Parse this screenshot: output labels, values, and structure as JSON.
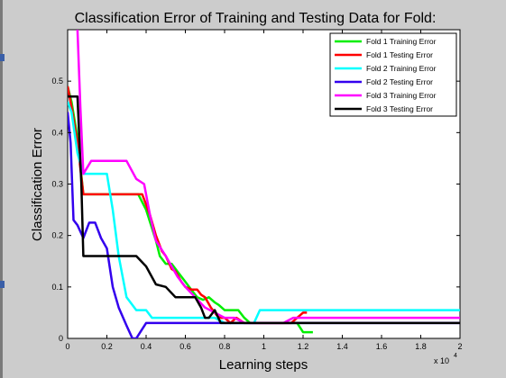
{
  "chart_data": {
    "type": "line",
    "title": "Classification Error of Training and Testing Data for Fold:",
    "xlabel": "Learning steps",
    "ylabel": "Classification Error",
    "x_multiplier": "x 10",
    "x_multiplier_exp": "4",
    "xlim": [
      0,
      2
    ],
    "ylim": [
      0,
      0.6
    ],
    "x_ticks": [
      "0",
      "0.2",
      "0.4",
      "0.6",
      "0.8",
      "1",
      "1.2",
      "1.4",
      "1.6",
      "1.8",
      "2"
    ],
    "x_tick_values": [
      0,
      0.2,
      0.4,
      0.6,
      0.8,
      1.0,
      1.2,
      1.4,
      1.6,
      1.8,
      2.0
    ],
    "y_ticks": [
      "0",
      "0.1",
      "0.2",
      "0.3",
      "0.4",
      "0.5"
    ],
    "y_tick_values": [
      0,
      0.1,
      0.2,
      0.3,
      0.4,
      0.5
    ],
    "grid": false,
    "legend_position": "top-right",
    "series": [
      {
        "name": "Fold 1 Training Error",
        "color": "#00ee00",
        "points": [
          [
            0,
            0.49
          ],
          [
            0.02,
            0.46
          ],
          [
            0.05,
            0.39
          ],
          [
            0.08,
            0.28
          ],
          [
            0.2,
            0.28
          ],
          [
            0.36,
            0.28
          ],
          [
            0.4,
            0.25
          ],
          [
            0.45,
            0.19
          ],
          [
            0.47,
            0.16
          ],
          [
            0.5,
            0.145
          ],
          [
            0.53,
            0.145
          ],
          [
            0.56,
            0.13
          ],
          [
            0.6,
            0.11
          ],
          [
            0.64,
            0.09
          ],
          [
            0.66,
            0.08
          ],
          [
            0.69,
            0.075
          ],
          [
            0.72,
            0.08
          ],
          [
            0.75,
            0.07
          ],
          [
            0.77,
            0.065
          ],
          [
            0.8,
            0.055
          ],
          [
            0.87,
            0.055
          ],
          [
            0.9,
            0.04
          ],
          [
            0.93,
            0.03
          ],
          [
            1.0,
            0.03
          ],
          [
            1.1,
            0.03
          ],
          [
            1.17,
            0.03
          ],
          [
            1.2,
            0.012
          ],
          [
            1.25,
            0.012
          ]
        ]
      },
      {
        "name": "Fold 1 Testing Error",
        "color": "#ff0000",
        "points": [
          [
            0,
            0.49
          ],
          [
            0.02,
            0.45
          ],
          [
            0.05,
            0.38
          ],
          [
            0.08,
            0.28
          ],
          [
            0.2,
            0.28
          ],
          [
            0.38,
            0.28
          ],
          [
            0.42,
            0.24
          ],
          [
            0.45,
            0.2
          ],
          [
            0.48,
            0.17
          ],
          [
            0.5,
            0.16
          ],
          [
            0.53,
            0.135
          ],
          [
            0.55,
            0.13
          ],
          [
            0.58,
            0.11
          ],
          [
            0.6,
            0.1
          ],
          [
            0.63,
            0.095
          ],
          [
            0.66,
            0.095
          ],
          [
            0.68,
            0.085
          ],
          [
            0.7,
            0.08
          ],
          [
            0.73,
            0.06
          ],
          [
            0.76,
            0.045
          ],
          [
            0.78,
            0.04
          ],
          [
            0.8,
            0.04
          ],
          [
            0.83,
            0.03
          ],
          [
            0.86,
            0.04
          ],
          [
            0.9,
            0.03
          ],
          [
            0.95,
            0.03
          ],
          [
            1.1,
            0.03
          ],
          [
            1.14,
            0.03
          ],
          [
            1.17,
            0.04
          ],
          [
            1.2,
            0.05
          ],
          [
            1.22,
            0.05
          ]
        ]
      },
      {
        "name": "Fold 2 Training Error",
        "color": "#00ffff",
        "points": [
          [
            0,
            0.46
          ],
          [
            0.02,
            0.44
          ],
          [
            0.05,
            0.36
          ],
          [
            0.08,
            0.32
          ],
          [
            0.2,
            0.32
          ],
          [
            0.23,
            0.25
          ],
          [
            0.26,
            0.16
          ],
          [
            0.3,
            0.08
          ],
          [
            0.35,
            0.055
          ],
          [
            0.4,
            0.055
          ],
          [
            0.43,
            0.04
          ],
          [
            0.6,
            0.04
          ],
          [
            0.75,
            0.04
          ],
          [
            0.8,
            0.03
          ],
          [
            0.95,
            0.03
          ],
          [
            0.98,
            0.055
          ],
          [
            1.2,
            0.055
          ],
          [
            2.0,
            0.055
          ]
        ]
      },
      {
        "name": "Fold 2 Testing Error",
        "color": "#3300ee",
        "points": [
          [
            0,
            0.44
          ],
          [
            0.015,
            0.38
          ],
          [
            0.03,
            0.23
          ],
          [
            0.05,
            0.22
          ],
          [
            0.08,
            0.195
          ],
          [
            0.11,
            0.225
          ],
          [
            0.14,
            0.225
          ],
          [
            0.17,
            0.195
          ],
          [
            0.2,
            0.175
          ],
          [
            0.23,
            0.1
          ],
          [
            0.26,
            0.06
          ],
          [
            0.3,
            0.025
          ],
          [
            0.33,
            0.0
          ],
          [
            0.35,
            0.0
          ],
          [
            0.37,
            0.012
          ],
          [
            0.4,
            0.03
          ],
          [
            0.6,
            0.03
          ],
          [
            1.0,
            0.03
          ],
          [
            2.0,
            0.03
          ]
        ]
      },
      {
        "name": "Fold 3 Training Error",
        "color": "#ff00ff",
        "points": [
          [
            0.05,
            0.6
          ],
          [
            0.065,
            0.45
          ],
          [
            0.08,
            0.32
          ],
          [
            0.12,
            0.345
          ],
          [
            0.3,
            0.345
          ],
          [
            0.35,
            0.31
          ],
          [
            0.39,
            0.3
          ],
          [
            0.42,
            0.24
          ],
          [
            0.45,
            0.19
          ],
          [
            0.5,
            0.16
          ],
          [
            0.53,
            0.14
          ],
          [
            0.56,
            0.12
          ],
          [
            0.6,
            0.1
          ],
          [
            0.65,
            0.08
          ],
          [
            0.7,
            0.06
          ],
          [
            0.75,
            0.05
          ],
          [
            0.8,
            0.04
          ],
          [
            0.85,
            0.04
          ],
          [
            0.9,
            0.03
          ],
          [
            1.1,
            0.03
          ],
          [
            1.15,
            0.04
          ],
          [
            1.2,
            0.04
          ],
          [
            2.0,
            0.04
          ]
        ]
      },
      {
        "name": "Fold 3 Testing Error",
        "color": "#000000",
        "points": [
          [
            0,
            0.47
          ],
          [
            0.05,
            0.47
          ],
          [
            0.07,
            0.3
          ],
          [
            0.08,
            0.16
          ],
          [
            0.35,
            0.16
          ],
          [
            0.4,
            0.14
          ],
          [
            0.45,
            0.105
          ],
          [
            0.5,
            0.1
          ],
          [
            0.55,
            0.08
          ],
          [
            0.65,
            0.08
          ],
          [
            0.68,
            0.06
          ],
          [
            0.7,
            0.04
          ],
          [
            0.72,
            0.04
          ],
          [
            0.75,
            0.055
          ],
          [
            0.78,
            0.03
          ],
          [
            2.0,
            0.03
          ]
        ]
      }
    ]
  }
}
